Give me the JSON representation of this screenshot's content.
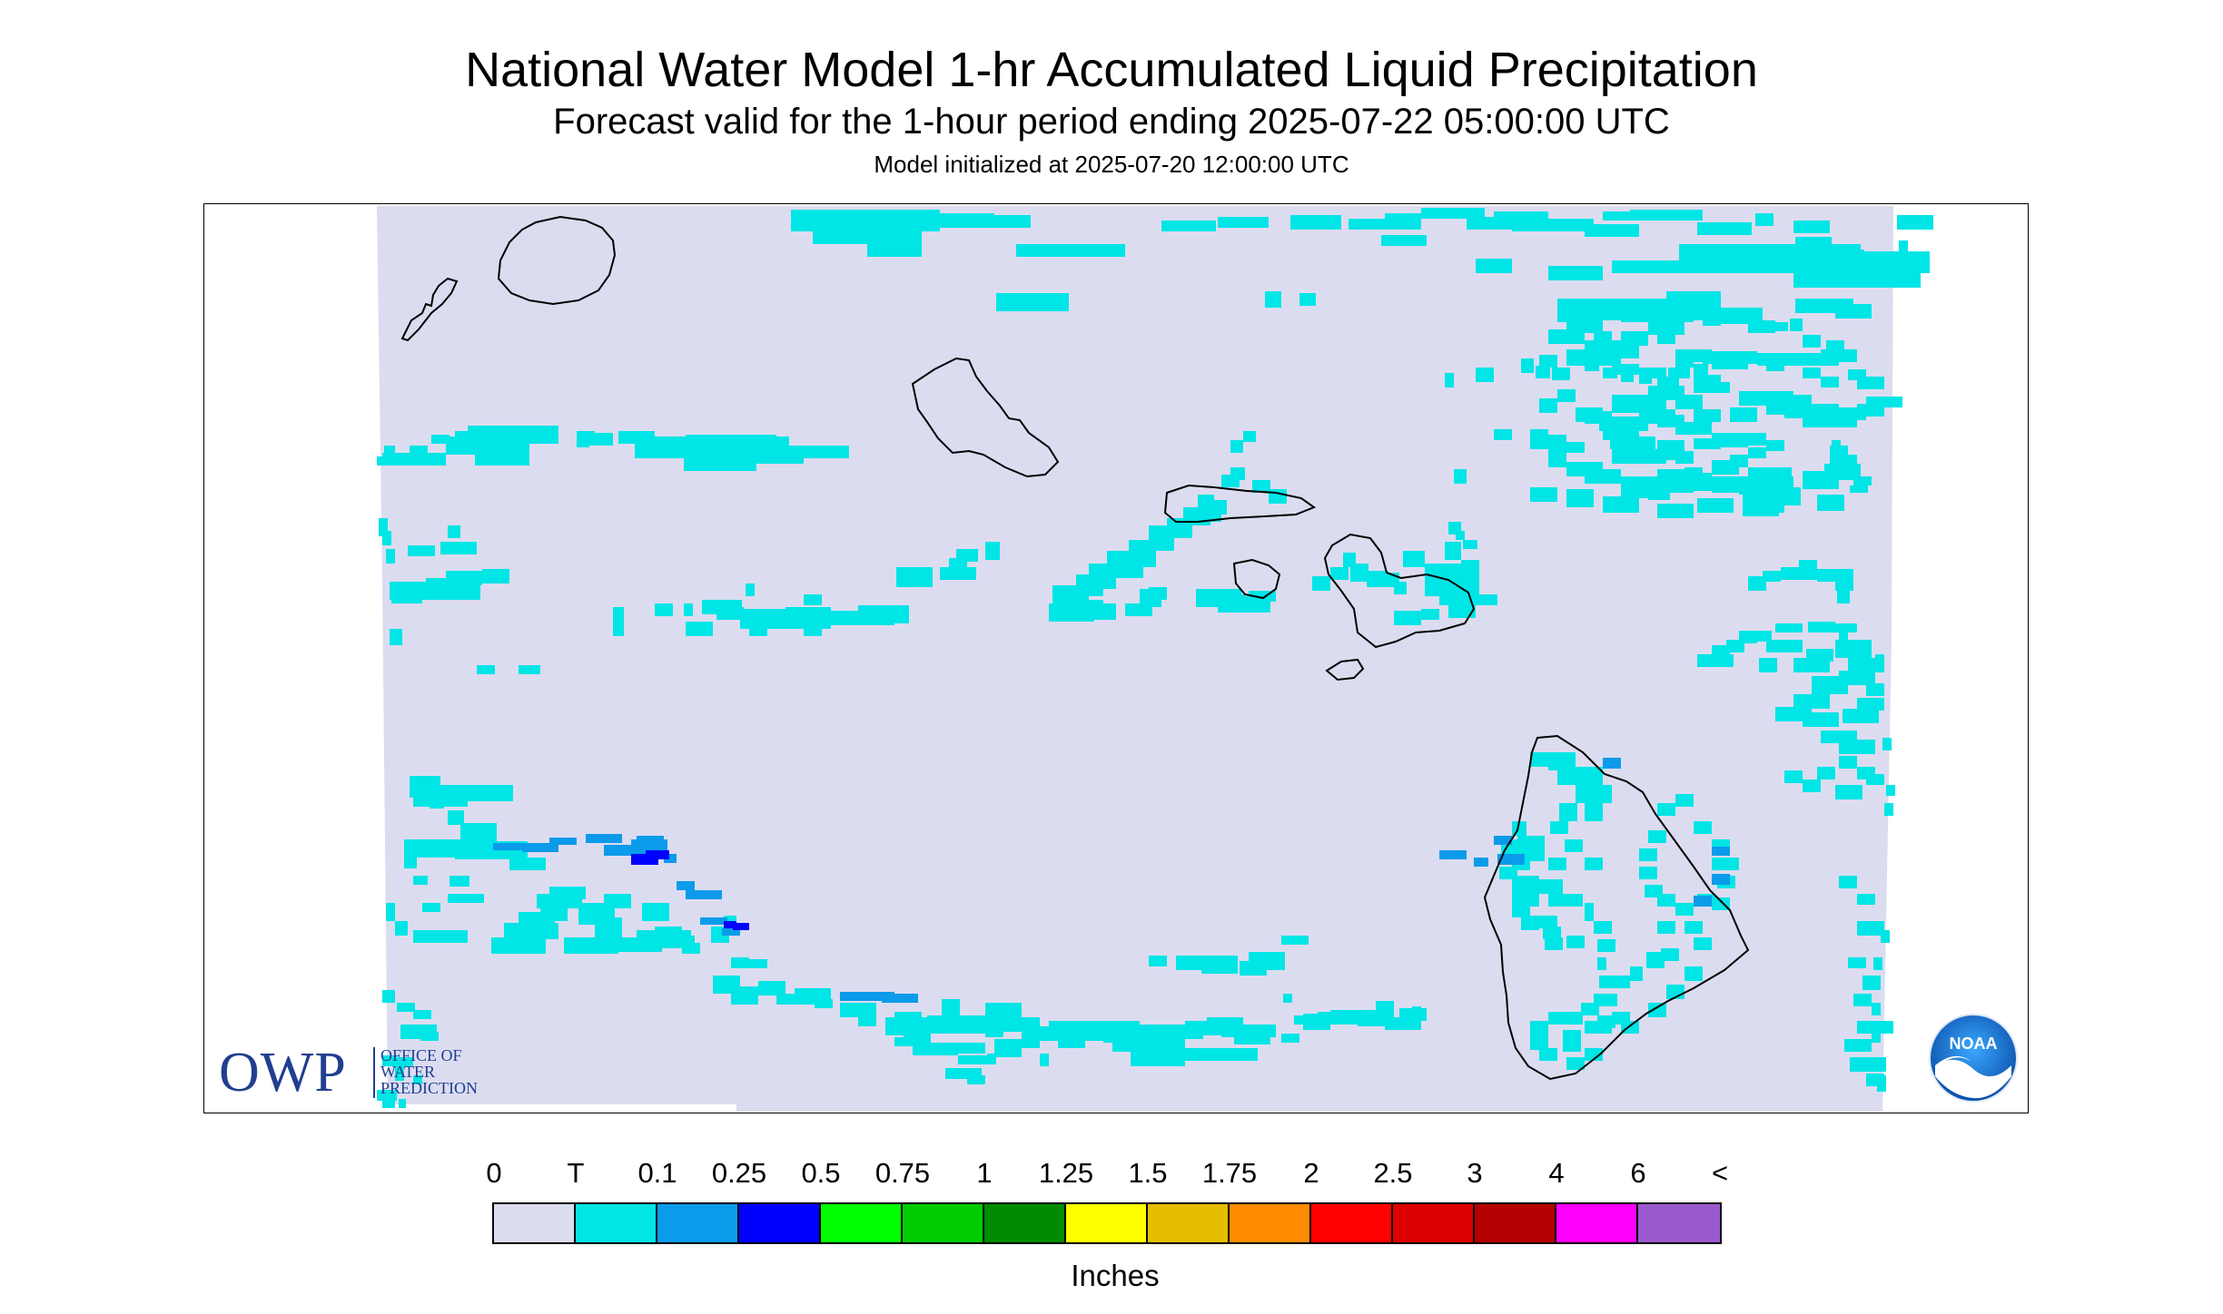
{
  "title": "National Water Model 1-hr Accumulated Liquid Precipitation",
  "subtitle": "Forecast valid for the 1-hour period ending 2025-07-22 05:00:00 UTC",
  "init_text": "Model initialized at 2025-07-20 12:00:00 UTC",
  "owp": {
    "abbr": "OWP",
    "line1": "OFFICE OF",
    "line2": "WATER",
    "line3": "PREDICTION"
  },
  "noaa": {
    "text": "NOAA"
  },
  "map": {
    "background_color": "#dcdcf0",
    "coastline_color": "#000000",
    "islands": [
      "Niihau",
      "Kauai",
      "Oahu",
      "Molokai",
      "Lanai",
      "Maui",
      "Kahoolawe",
      "Hawaii"
    ]
  },
  "legend": {
    "ticks": [
      "0",
      "T",
      "0.1",
      "0.25",
      "0.5",
      "0.75",
      "1",
      "1.25",
      "1.5",
      "1.75",
      "2",
      "2.5",
      "3",
      "4",
      "6",
      "<"
    ],
    "colors": [
      "#dcdcf0",
      "#00e5e5",
      "#0b9bea",
      "#0000ff",
      "#00ff00",
      "#00cc00",
      "#008c00",
      "#ffff00",
      "#e6be00",
      "#ff8c00",
      "#ff0000",
      "#dc0000",
      "#b40000",
      "#ff00ff",
      "#9b59d0"
    ],
    "units": "Inches"
  }
}
